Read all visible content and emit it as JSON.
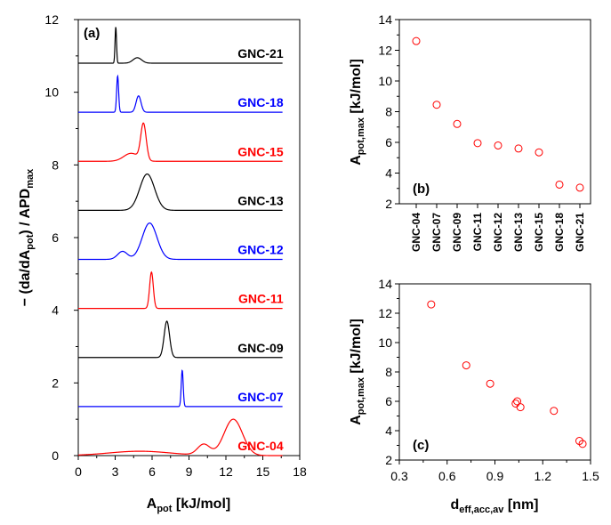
{
  "chart_data": [
    {
      "panel": "(a)",
      "type": "line",
      "xlabel": "A",
      "xlabel_sub": "pot",
      "xlabel_unit": " [kJ/mol]",
      "ylabel": "− (da/dA",
      "ylabel_sub": "pot",
      "ylabel_mid": ") / APD",
      "ylabel_sub2": "max",
      "xlim": [
        0,
        18
      ],
      "ylim": [
        0,
        12
      ],
      "xticks": [
        "0",
        "3",
        "6",
        "9",
        "12",
        "15",
        "18"
      ],
      "yticks": [
        "0",
        "2",
        "4",
        "6",
        "8",
        "10",
        "12"
      ],
      "series": [
        {
          "name": "GNC-04",
          "color": "#ff0000",
          "offset": 0.0,
          "x_end": 16.6,
          "peaks": [
            {
              "x": 12.6,
              "h": 1.0,
              "w": 0.75
            },
            {
              "x": 10.2,
              "h": 0.3,
              "w": 0.5
            },
            {
              "x": 5.0,
              "h": 0.12,
              "w": 2.5
            }
          ]
        },
        {
          "name": "GNC-07",
          "color": "#0000ff",
          "offset": 1.35,
          "x_end": 16.6,
          "peaks": [
            {
              "x": 8.45,
              "h": 1.0,
              "w": 0.08
            }
          ]
        },
        {
          "name": "GNC-09",
          "color": "#000000",
          "offset": 2.7,
          "x_end": 16.6,
          "peaks": [
            {
              "x": 7.2,
              "h": 1.0,
              "w": 0.22
            }
          ]
        },
        {
          "name": "GNC-11",
          "color": "#ff0000",
          "offset": 4.05,
          "x_end": 16.6,
          "peaks": [
            {
              "x": 5.95,
              "h": 1.0,
              "w": 0.15
            }
          ]
        },
        {
          "name": "GNC-12",
          "color": "#0000ff",
          "offset": 5.4,
          "x_end": 16.6,
          "peaks": [
            {
              "x": 5.8,
              "h": 1.0,
              "w": 0.6
            },
            {
              "x": 3.6,
              "h": 0.22,
              "w": 0.4
            }
          ]
        },
        {
          "name": "GNC-13",
          "color": "#000000",
          "offset": 6.75,
          "x_end": 16.6,
          "peaks": [
            {
              "x": 5.6,
              "h": 1.0,
              "w": 0.6
            }
          ]
        },
        {
          "name": "GNC-15",
          "color": "#ff0000",
          "offset": 8.1,
          "x_end": 16.6,
          "peaks": [
            {
              "x": 5.3,
              "h": 1.0,
              "w": 0.22
            },
            {
              "x": 4.3,
              "h": 0.22,
              "w": 0.6
            }
          ]
        },
        {
          "name": "GNC-18",
          "color": "#0000ff",
          "offset": 9.45,
          "x_end": 16.6,
          "peaks": [
            {
              "x": 3.2,
              "h": 1.0,
              "w": 0.08
            },
            {
              "x": 4.9,
              "h": 0.45,
              "w": 0.2
            }
          ]
        },
        {
          "name": "GNC-21",
          "color": "#000000",
          "offset": 10.8,
          "x_end": 16.6,
          "peaks": [
            {
              "x": 3.05,
              "h": 1.0,
              "w": 0.06
            },
            {
              "x": 4.8,
              "h": 0.15,
              "w": 0.35
            }
          ]
        }
      ]
    },
    {
      "panel": "(b)",
      "type": "scatter",
      "ylabel": "A",
      "ylabel_sub": "pot,max",
      "ylabel_unit": " [kJ/mol]",
      "categories": [
        "GNC-04",
        "GNC-07",
        "GNC-09",
        "GNC-11",
        "GNC-12",
        "GNC-13",
        "GNC-15",
        "GNC-18",
        "GNC-21"
      ],
      "values": [
        12.6,
        8.45,
        7.2,
        5.95,
        5.8,
        5.6,
        5.35,
        3.25,
        3.05
      ],
      "ylim": [
        2,
        14
      ],
      "yticks": [
        "2",
        "4",
        "6",
        "8",
        "10",
        "12",
        "14"
      ],
      "marker_color": "#ff0000"
    },
    {
      "panel": "(c)",
      "type": "scatter",
      "xlabel": "d",
      "xlabel_sub": "eff,acc,av",
      "xlabel_unit": " [nm]",
      "ylabel": "A",
      "ylabel_sub": "pot,max",
      "ylabel_unit": " [kJ/mol]",
      "x": [
        0.5,
        0.72,
        0.87,
        1.03,
        1.04,
        1.06,
        1.27,
        1.43,
        1.45
      ],
      "y": [
        12.6,
        8.45,
        7.2,
        5.85,
        6.0,
        5.6,
        5.35,
        3.3,
        3.1
      ],
      "xlim": [
        0.3,
        1.5
      ],
      "ylim": [
        2,
        14
      ],
      "xticks": [
        "0.3",
        "0.6",
        "0.9",
        "1.2",
        "1.5"
      ],
      "yticks": [
        "2",
        "4",
        "6",
        "8",
        "10",
        "12",
        "14"
      ],
      "marker_color": "#ff0000"
    }
  ]
}
